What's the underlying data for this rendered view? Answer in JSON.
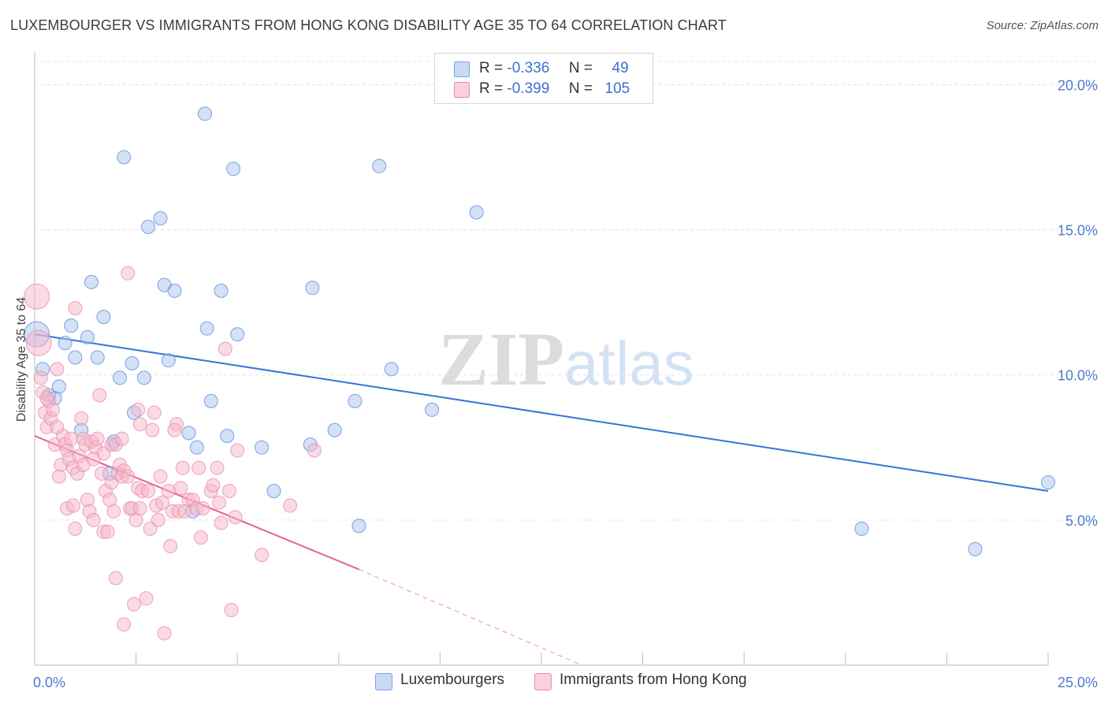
{
  "header": {
    "title": "LUXEMBOURGER VS IMMIGRANTS FROM HONG KONG DISABILITY AGE 35 TO 64 CORRELATION CHART",
    "source": "Source: ZipAtlas.com"
  },
  "watermark": {
    "zip": "ZIP",
    "atlas": "atlas"
  },
  "stats_legend": {
    "rows": [
      {
        "r_label": "R =",
        "r_value": "-0.336",
        "n_label": "N =",
        "n_value": "49",
        "color": "#a9c4ee"
      },
      {
        "r_label": "R =",
        "r_value": "-0.399",
        "n_label": "N =",
        "n_value": "105",
        "color": "#f5b6c9"
      }
    ]
  },
  "bottom_legend": {
    "items": [
      {
        "label": "Luxembourgers",
        "color": "#a9c4ee"
      },
      {
        "label": "Immigrants from Hong Kong",
        "color": "#f5b6c9"
      }
    ]
  },
  "chart_data": {
    "type": "scatter",
    "title": "LUXEMBOURGER VS IMMIGRANTS FROM HONG KONG DISABILITY AGE 35 TO 64 CORRELATION CHART",
    "xlabel": "",
    "ylabel": "Disability Age 35 to 64",
    "xlim": [
      0,
      25
    ],
    "ylim": [
      0,
      20.8
    ],
    "x_tick_labels": [
      {
        "value": 0,
        "label": "0.0%"
      },
      {
        "value": 25,
        "label": "25.0%"
      }
    ],
    "y_ticks": [
      {
        "value": 5,
        "label": "5.0%"
      },
      {
        "value": 10,
        "label": "10.0%"
      },
      {
        "value": 15,
        "label": "15.0%"
      },
      {
        "value": 20,
        "label": "20.0%"
      }
    ],
    "x_minor_ticks": [
      0,
      2.5,
      5,
      7.5,
      10,
      12.5,
      15,
      17.5,
      20,
      22.5,
      25
    ],
    "grid": true,
    "legend": "bottom-center",
    "series": [
      {
        "name": "Luxembourgers",
        "color": "#5b8fdc",
        "fill": "#a9c4ee",
        "trend": {
          "x": [
            0,
            25
          ],
          "y": [
            11.4,
            6.0
          ],
          "color": "#3375d6"
        },
        "points": [
          [
            0.05,
            11.4
          ],
          [
            0.2,
            10.2
          ],
          [
            0.35,
            9.3
          ],
          [
            0.5,
            9.2
          ],
          [
            0.6,
            9.6
          ],
          [
            0.75,
            11.1
          ],
          [
            0.9,
            11.7
          ],
          [
            1.0,
            10.6
          ],
          [
            1.15,
            8.1
          ],
          [
            1.3,
            11.3
          ],
          [
            1.4,
            13.2
          ],
          [
            1.55,
            10.6
          ],
          [
            1.7,
            12.0
          ],
          [
            1.85,
            6.6
          ],
          [
            1.95,
            7.7
          ],
          [
            2.1,
            9.9
          ],
          [
            2.2,
            17.5
          ],
          [
            2.4,
            10.4
          ],
          [
            2.45,
            8.7
          ],
          [
            2.7,
            9.9
          ],
          [
            2.8,
            15.1
          ],
          [
            3.1,
            15.4
          ],
          [
            3.2,
            13.1
          ],
          [
            3.3,
            10.5
          ],
          [
            3.45,
            12.9
          ],
          [
            3.8,
            8.0
          ],
          [
            3.9,
            5.3
          ],
          [
            4.0,
            7.5
          ],
          [
            4.2,
            19.0
          ],
          [
            4.25,
            11.6
          ],
          [
            4.35,
            9.1
          ],
          [
            4.6,
            12.9
          ],
          [
            4.75,
            7.9
          ],
          [
            4.9,
            17.1
          ],
          [
            5.0,
            11.4
          ],
          [
            5.6,
            7.5
          ],
          [
            5.9,
            6.0
          ],
          [
            6.85,
            13.0
          ],
          [
            6.8,
            7.6
          ],
          [
            7.4,
            8.1
          ],
          [
            7.9,
            9.1
          ],
          [
            8.0,
            4.8
          ],
          [
            8.5,
            17.2
          ],
          [
            8.8,
            10.2
          ],
          [
            9.8,
            8.8
          ],
          [
            10.9,
            15.6
          ],
          [
            20.4,
            4.7
          ],
          [
            23.2,
            4.0
          ],
          [
            25.0,
            6.3
          ]
        ]
      },
      {
        "name": "Immigrants from Hong Kong",
        "color": "#ea8fab",
        "fill": "#f5b6c9",
        "trend": {
          "x": [
            0,
            8.0
          ],
          "y": [
            7.9,
            3.3
          ],
          "color": "#e4628f",
          "dashed_to": {
            "x": 13.5,
            "y": 0.0
          }
        },
        "points": [
          [
            0.05,
            12.7
          ],
          [
            0.1,
            11.1
          ],
          [
            0.15,
            9.9
          ],
          [
            0.2,
            9.4
          ],
          [
            0.25,
            8.7
          ],
          [
            0.3,
            8.2
          ],
          [
            0.35,
            9.1
          ],
          [
            0.4,
            8.5
          ],
          [
            0.45,
            8.8
          ],
          [
            0.5,
            7.6
          ],
          [
            0.55,
            10.2
          ],
          [
            0.6,
            6.5
          ],
          [
            0.65,
            6.9
          ],
          [
            0.7,
            7.9
          ],
          [
            0.75,
            7.6
          ],
          [
            0.8,
            7.4
          ],
          [
            0.8,
            5.4
          ],
          [
            0.85,
            7.1
          ],
          [
            0.9,
            7.8
          ],
          [
            0.95,
            6.8
          ],
          [
            1.0,
            12.3
          ],
          [
            1.0,
            4.7
          ],
          [
            1.05,
            6.6
          ],
          [
            1.1,
            7.2
          ],
          [
            1.15,
            8.5
          ],
          [
            1.2,
            7.8
          ],
          [
            1.2,
            6.9
          ],
          [
            1.25,
            7.6
          ],
          [
            1.3,
            5.7
          ],
          [
            1.35,
            5.3
          ],
          [
            1.4,
            7.7
          ],
          [
            1.45,
            5.0
          ],
          [
            1.5,
            7.5
          ],
          [
            1.55,
            7.8
          ],
          [
            1.6,
            9.3
          ],
          [
            1.65,
            6.6
          ],
          [
            1.7,
            4.6
          ],
          [
            1.7,
            7.3
          ],
          [
            1.75,
            6.0
          ],
          [
            1.8,
            4.6
          ],
          [
            1.85,
            5.7
          ],
          [
            1.9,
            7.6
          ],
          [
            1.9,
            6.3
          ],
          [
            1.95,
            5.3
          ],
          [
            2.0,
            7.6
          ],
          [
            2.0,
            3.0
          ],
          [
            2.05,
            6.6
          ],
          [
            2.1,
            6.9
          ],
          [
            2.15,
            6.5
          ],
          [
            2.2,
            6.7
          ],
          [
            2.2,
            1.4
          ],
          [
            2.3,
            13.5
          ],
          [
            2.3,
            6.5
          ],
          [
            2.35,
            5.4
          ],
          [
            2.4,
            5.4
          ],
          [
            2.45,
            2.1
          ],
          [
            2.5,
            5.0
          ],
          [
            2.55,
            6.1
          ],
          [
            2.55,
            8.8
          ],
          [
            2.6,
            5.4
          ],
          [
            2.65,
            6.0
          ],
          [
            2.75,
            2.3
          ],
          [
            2.8,
            6.0
          ],
          [
            2.85,
            4.7
          ],
          [
            2.9,
            8.1
          ],
          [
            2.95,
            8.7
          ],
          [
            3.0,
            5.5
          ],
          [
            3.05,
            5.0
          ],
          [
            3.1,
            6.5
          ],
          [
            3.15,
            5.6
          ],
          [
            3.2,
            1.1
          ],
          [
            3.3,
            6.0
          ],
          [
            3.35,
            4.1
          ],
          [
            3.4,
            5.3
          ],
          [
            3.5,
            8.3
          ],
          [
            3.55,
            5.3
          ],
          [
            3.6,
            6.1
          ],
          [
            3.65,
            6.8
          ],
          [
            3.7,
            5.3
          ],
          [
            3.8,
            5.7
          ],
          [
            3.9,
            5.7
          ],
          [
            4.0,
            5.4
          ],
          [
            4.05,
            6.8
          ],
          [
            4.1,
            4.4
          ],
          [
            4.15,
            5.4
          ],
          [
            4.35,
            6.0
          ],
          [
            4.4,
            6.2
          ],
          [
            4.5,
            6.8
          ],
          [
            4.55,
            5.6
          ],
          [
            4.6,
            4.9
          ],
          [
            4.7,
            10.9
          ],
          [
            4.8,
            6.0
          ],
          [
            4.85,
            1.9
          ],
          [
            4.95,
            5.1
          ],
          [
            5.0,
            7.4
          ],
          [
            5.6,
            3.8
          ],
          [
            6.3,
            5.5
          ],
          [
            6.9,
            7.4
          ],
          [
            0.3,
            9.2
          ],
          [
            1.45,
            7.1
          ],
          [
            2.15,
            7.8
          ],
          [
            2.6,
            8.3
          ],
          [
            3.45,
            8.1
          ],
          [
            0.55,
            8.2
          ],
          [
            0.95,
            5.5
          ]
        ]
      }
    ]
  }
}
